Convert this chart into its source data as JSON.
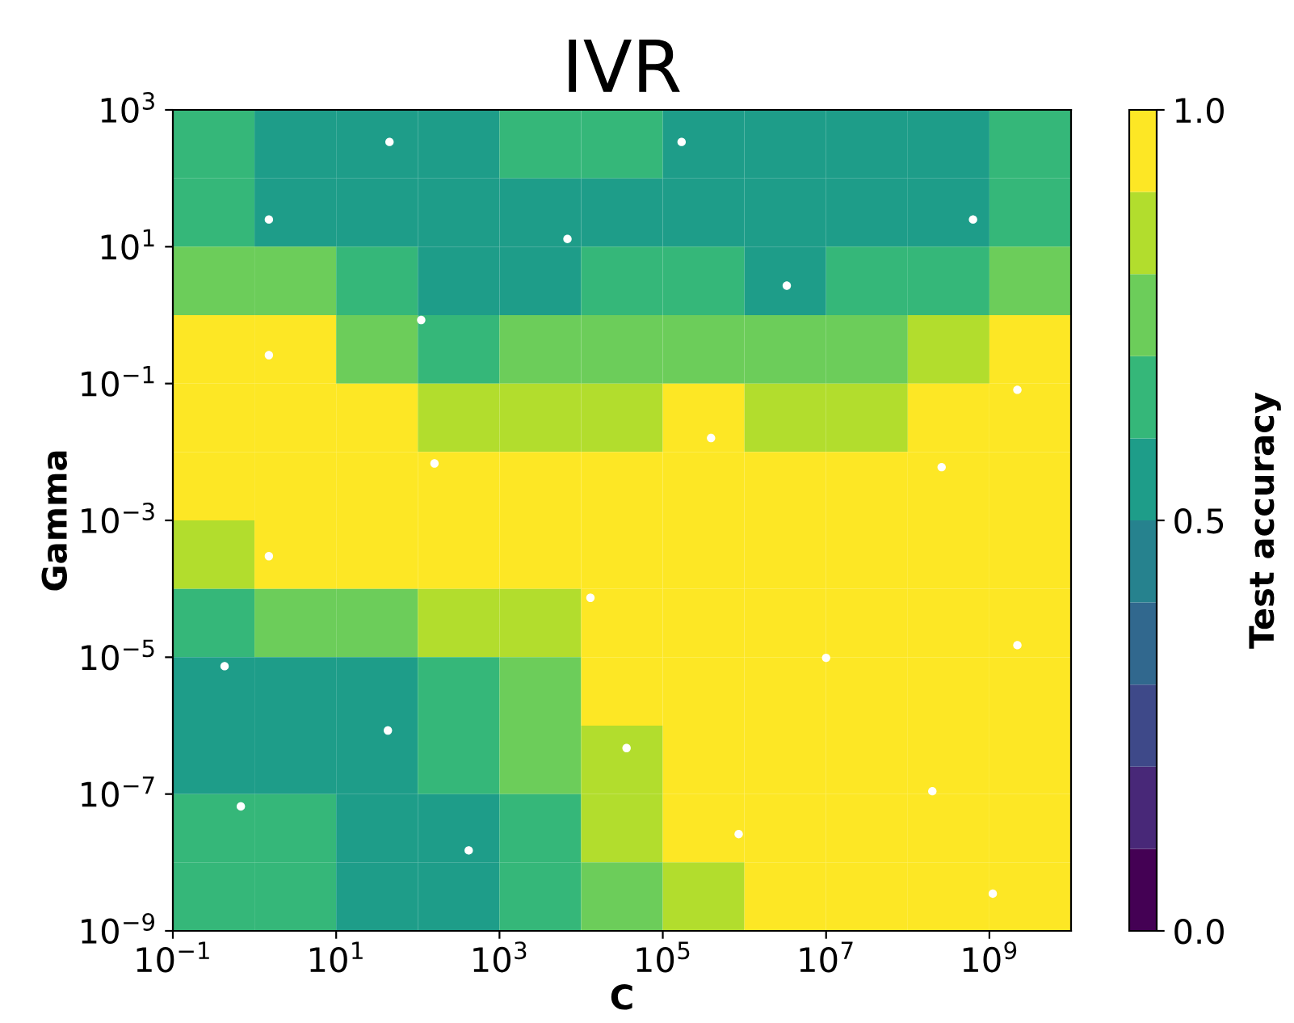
{
  "chart_data": {
    "type": "heatmap",
    "title": "IVR",
    "xlabel": "C",
    "ylabel": "Gamma",
    "clabel": "Test accuracy",
    "log": "xy",
    "xlim": [
      0.1,
      10000000000
    ],
    "ylim": [
      1e-09,
      1000
    ],
    "xticks": [
      {
        "value": 0.1,
        "label": "10$^{−1}$"
      },
      {
        "value": 10,
        "label": "10$^{1}$"
      },
      {
        "value": 1000,
        "label": "10$^{3}$"
      },
      {
        "value": 100000,
        "label": "10$^{5}$"
      },
      {
        "value": 10000000,
        "label": "10$^{7}$"
      },
      {
        "value": 1000000000,
        "label": "10$^{9}$"
      }
    ],
    "yticks": [
      {
        "value": 1e-09,
        "label": "10$^{−9}$"
      },
      {
        "value": 1e-07,
        "label": "10$^{−7}$"
      },
      {
        "value": 1e-05,
        "label": "10$^{−5}$"
      },
      {
        "value": 0.001,
        "label": "10$^{−3}$"
      },
      {
        "value": 0.1,
        "label": "10$^{−1}$"
      },
      {
        "value": 10,
        "label": "10$^{1}$"
      },
      {
        "value": 1000,
        "label": "10$^{3}$"
      }
    ],
    "clim": [
      0,
      1
    ],
    "cticks": [
      {
        "value": 0,
        "label": "0.0"
      },
      0.5,
      {
        "value": 1,
        "label": "1.0"
      }
    ],
    "cells": [
      [
        0.65,
        0.55,
        0.55,
        0.55,
        0.65,
        0.65,
        0.55,
        0.55,
        0.55,
        0.55,
        0.65
      ],
      [
        0.65,
        0.55,
        0.55,
        0.55,
        0.55,
        0.55,
        0.55,
        0.55,
        0.55,
        0.55,
        0.65
      ],
      [
        0.75,
        0.75,
        0.65,
        0.55,
        0.55,
        0.65,
        0.65,
        0.55,
        0.65,
        0.65,
        0.75
      ],
      [
        0.95,
        0.95,
        0.75,
        0.65,
        0.75,
        0.75,
        0.75,
        0.75,
        0.75,
        0.85,
        0.95
      ],
      [
        0.95,
        0.95,
        0.95,
        0.85,
        0.85,
        0.85,
        0.95,
        0.85,
        0.85,
        0.95,
        0.95
      ],
      [
        0.95,
        0.95,
        0.95,
        0.95,
        0.95,
        0.95,
        0.95,
        0.95,
        0.95,
        0.95,
        0.95
      ],
      [
        0.85,
        0.95,
        0.95,
        0.95,
        0.95,
        0.95,
        0.95,
        0.95,
        0.95,
        0.95,
        0.95
      ],
      [
        0.65,
        0.75,
        0.75,
        0.85,
        0.85,
        0.95,
        0.95,
        0.95,
        0.95,
        0.95,
        0.95
      ],
      [
        0.55,
        0.55,
        0.55,
        0.65,
        0.75,
        0.95,
        0.95,
        0.95,
        0.95,
        0.95,
        0.95
      ],
      [
        0.55,
        0.55,
        0.55,
        0.65,
        0.75,
        0.85,
        0.95,
        0.95,
        0.95,
        0.95,
        0.95
      ],
      [
        0.65,
        0.65,
        0.55,
        0.55,
        0.65,
        0.85,
        0.95,
        0.95,
        0.95,
        0.95,
        0.95
      ],
      [
        0.65,
        0.65,
        0.55,
        0.55,
        0.65,
        0.75,
        0.85,
        0.95,
        0.95,
        0.95,
        0.95
      ]
    ],
    "series": [
      {
        "type": "scatter",
        "color": "#ffffff",
        "x": [
          45,
          170000.0,
          1.5,
          6800.0,
          630000000.0,
          3300000.0,
          110,
          1.5,
          2200000000.0,
          390000.0,
          160,
          260000000.0,
          1.5,
          13000.0,
          0.43,
          10000000.0,
          2200000000.0,
          43,
          36000.0,
          0.68,
          200000000.0,
          420,
          850000.0,
          1100000000.0
        ],
        "values": [
          340,
          340,
          25,
          13,
          25,
          2.7,
          0.85,
          0.26,
          0.081,
          0.016,
          0.0068,
          0.006,
          0.0003,
          7.4e-05,
          7.4e-06,
          9.8e-06,
          1.5e-05,
          8.5e-07,
          4.7e-07,
          6.6e-08,
          1.1e-07,
          1.5e-08,
          2.6e-08,
          3.5e-09
        ]
      }
    ]
  }
}
